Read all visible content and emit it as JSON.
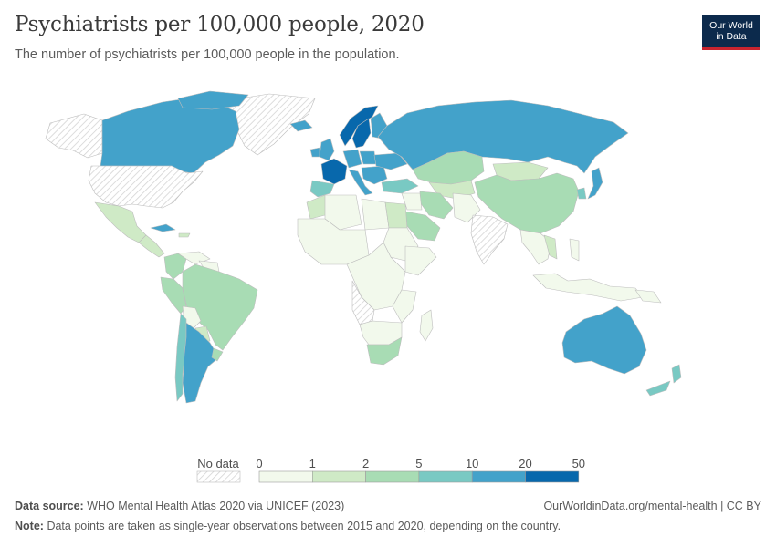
{
  "header": {
    "title": "Psychiatrists per 100,000 people, 2020",
    "subtitle": "The number of psychiatrists per 100,000 people in the population."
  },
  "logo": {
    "line1": "Our World",
    "line2": "in Data"
  },
  "legend": {
    "no_data_label": "No data",
    "ticks": [
      "0",
      "1",
      "2",
      "5",
      "10",
      "20",
      "50"
    ],
    "bins": [
      {
        "min": 0,
        "max": 1,
        "color": "#f2f9ec"
      },
      {
        "min": 1,
        "max": 2,
        "color": "#cfeac6"
      },
      {
        "min": 2,
        "max": 5,
        "color": "#a8dcb4"
      },
      {
        "min": 5,
        "max": 10,
        "color": "#79c9c3"
      },
      {
        "min": 10,
        "max": 20,
        "color": "#43a2ca"
      },
      {
        "min": 20,
        "max": 50,
        "color": "#0868ac"
      }
    ]
  },
  "footer": {
    "source_label": "Data source:",
    "source_text": "WHO Mental Health Atlas 2020 via UNICEF (2023)",
    "url": "OurWorldinData.org/mental-health | CC BY",
    "note_label": "Note:",
    "note_text": "Data points are taken as single-year observations between 2015 and 2020, depending on the country."
  },
  "map_colors": {
    "no_data": "#eeeeee",
    "border": "#bdbdbd"
  }
}
